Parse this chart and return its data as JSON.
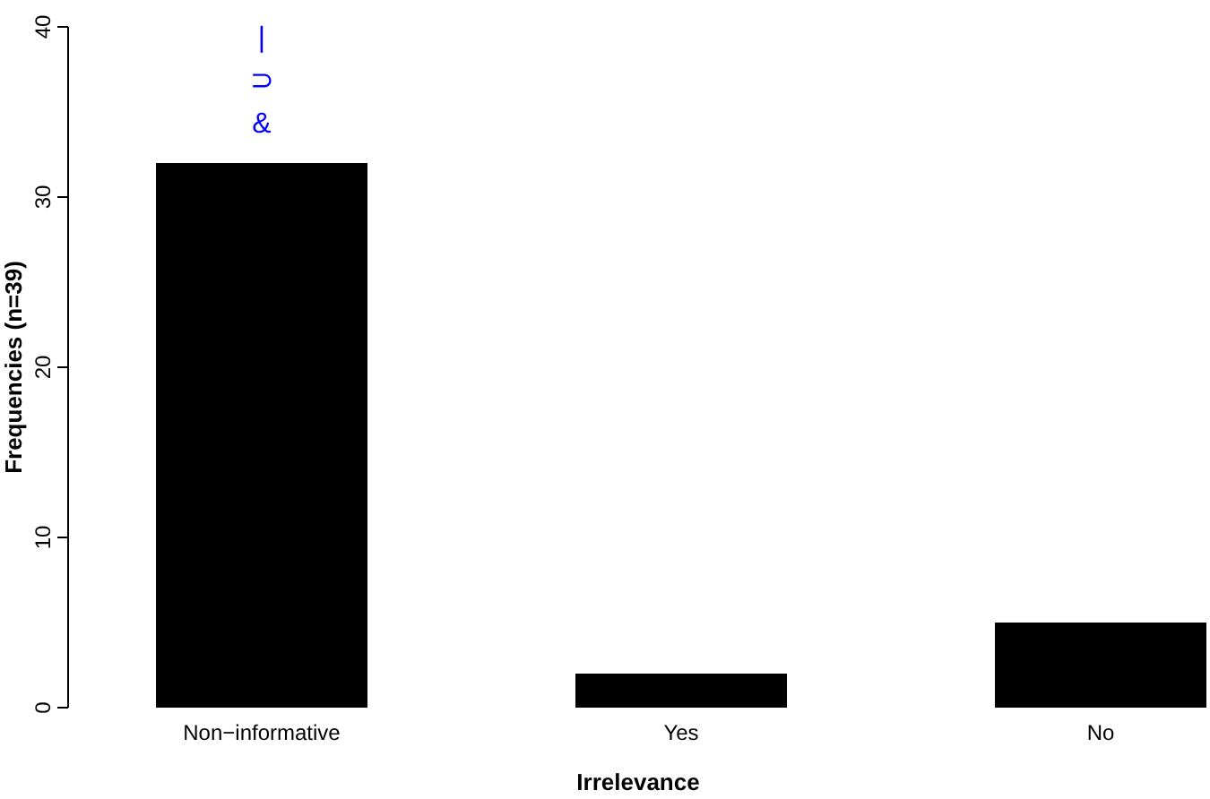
{
  "chart_data": {
    "type": "bar",
    "xlabel": "Irrelevance",
    "ylabel": "Frequencies (n=39)",
    "categories": [
      "Non−informative",
      "Yes",
      "No"
    ],
    "values": [
      32,
      2,
      5
    ],
    "color": "#000000",
    "ylim": [
      0,
      40
    ],
    "yticks": [
      0,
      10,
      20,
      30,
      40
    ],
    "grid": false,
    "annotations": [
      "&⊃|"
    ]
  }
}
